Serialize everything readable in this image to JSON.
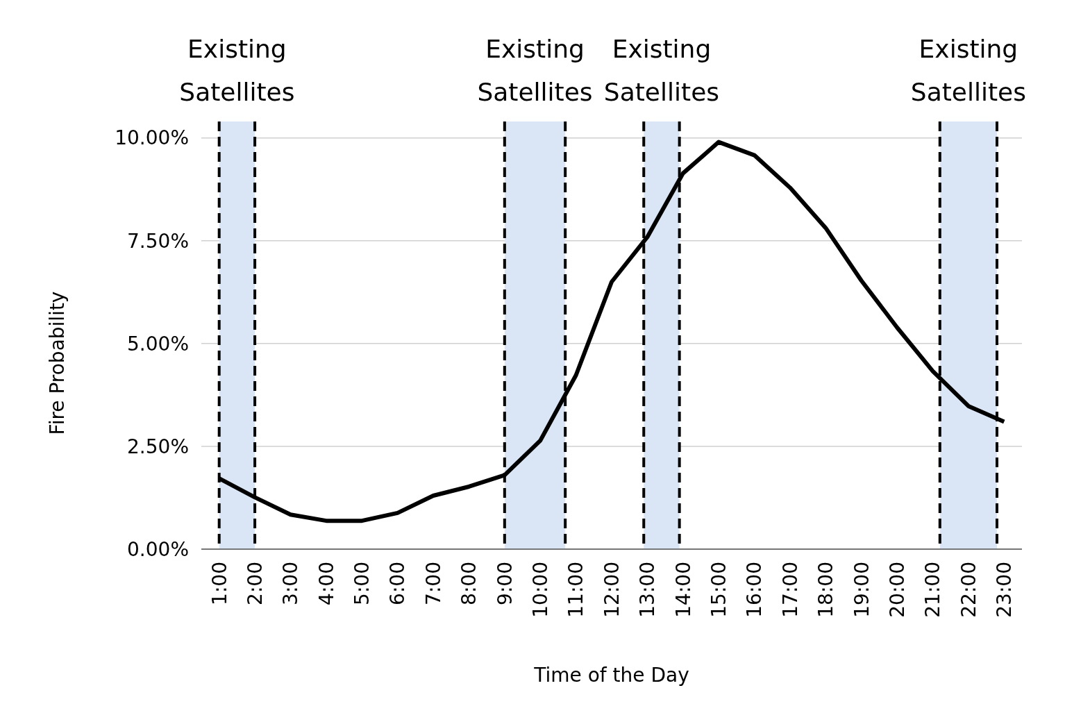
{
  "chart_data": {
    "type": "line",
    "xlabel": "Time of the Day",
    "ylabel": "Fire Probability",
    "x": [
      1,
      2,
      3,
      4,
      5,
      6,
      7,
      8,
      9,
      10,
      11,
      12,
      13,
      14,
      15,
      16,
      17,
      18,
      19,
      20,
      21,
      22,
      23
    ],
    "series": [
      {
        "color": "#000000",
        "values": [
          1.72,
          1.26,
          0.84,
          0.69,
          0.69,
          0.88,
          1.3,
          1.52,
          1.8,
          2.64,
          4.23,
          6.5,
          7.59,
          9.14,
          9.9,
          9.58,
          8.79,
          7.81,
          6.53,
          5.39,
          4.33,
          3.48,
          3.1
        ]
      }
    ],
    "xlim": [
      0.5,
      23.5
    ],
    "xticks": [
      {
        "value": 1,
        "label": "1:00"
      },
      {
        "value": 2,
        "label": "2:00"
      },
      {
        "value": 3,
        "label": "3:00"
      },
      {
        "value": 4,
        "label": "4:00"
      },
      {
        "value": 5,
        "label": "5:00"
      },
      {
        "value": 6,
        "label": "6:00"
      },
      {
        "value": 7,
        "label": "7:00"
      },
      {
        "value": 8,
        "label": "8:00"
      },
      {
        "value": 9,
        "label": "9:00"
      },
      {
        "value": 10,
        "label": "10:00"
      },
      {
        "value": 11,
        "label": "11:00"
      },
      {
        "value": 12,
        "label": "12:00"
      },
      {
        "value": 13,
        "label": "13:00"
      },
      {
        "value": 14,
        "label": "14:00"
      },
      {
        "value": 15,
        "label": "15:00"
      },
      {
        "value": 16,
        "label": "16:00"
      },
      {
        "value": 17,
        "label": "17:00"
      },
      {
        "value": 18,
        "label": "18:00"
      },
      {
        "value": 19,
        "label": "19:00"
      },
      {
        "value": 20,
        "label": "20:00"
      },
      {
        "value": 21,
        "label": "21:00"
      },
      {
        "value": 22,
        "label": "22:00"
      },
      {
        "value": 23,
        "label": "23:00"
      }
    ],
    "ylim": [
      0,
      10.4
    ],
    "yticks": [
      {
        "value": 0,
        "label": "0.00%"
      },
      {
        "value": 2.5,
        "label": "2.50%"
      },
      {
        "value": 5,
        "label": "5.00%"
      },
      {
        "value": 7.5,
        "label": "7.50%"
      },
      {
        "value": 10,
        "label": "10.00%"
      }
    ],
    "grid": "y",
    "marker": "none",
    "line_style": "solid",
    "ref_lines": [
      {
        "axis": "x",
        "value": 1,
        "line_style": "dashed",
        "color": "#000000"
      },
      {
        "axis": "x",
        "value": 2,
        "line_style": "dashed",
        "color": "#000000"
      },
      {
        "axis": "x",
        "value": 9,
        "line_style": "dashed",
        "color": "#000000"
      },
      {
        "axis": "x",
        "value": 10.7,
        "line_style": "dashed",
        "color": "#000000"
      },
      {
        "axis": "x",
        "value": 12.9,
        "line_style": "dashed",
        "color": "#000000"
      },
      {
        "axis": "x",
        "value": 13.9,
        "line_style": "dashed",
        "color": "#000000"
      },
      {
        "axis": "x",
        "value": 21.2,
        "line_style": "dashed",
        "color": "#000000"
      },
      {
        "axis": "x",
        "value": 22.8,
        "line_style": "dashed",
        "color": "#000000"
      }
    ],
    "bands": [
      {
        "axis": "x",
        "from": 1,
        "to": 2,
        "label": "Existing Satellites",
        "color": "#dae6f6"
      },
      {
        "axis": "x",
        "from": 9,
        "to": 10.7,
        "label": "Existing Satellites",
        "color": "#dae6f6"
      },
      {
        "axis": "x",
        "from": 12.9,
        "to": 13.9,
        "label": "Existing Satellites",
        "color": "#dae6f6"
      },
      {
        "axis": "x",
        "from": 21.2,
        "to": 22.8,
        "label": "Existing Satellites",
        "color": "#dae6f6"
      }
    ]
  }
}
